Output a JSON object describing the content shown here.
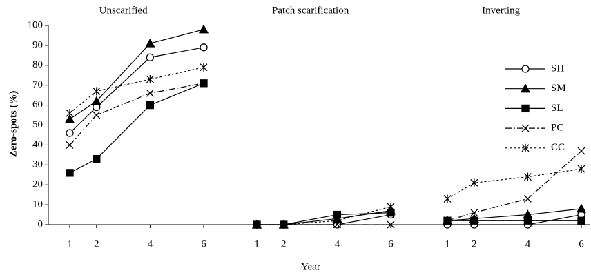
{
  "chart_data": {
    "type": "line",
    "y_label": "Zero-spots (%)",
    "x_label": "Year",
    "panels": [
      "Unscarified",
      "Patch scarification",
      "Inverting"
    ],
    "x": [
      1,
      2,
      4,
      6
    ],
    "ylim": [
      0,
      100
    ],
    "yticks": [
      0,
      10,
      20,
      30,
      40,
      50,
      60,
      70,
      80,
      90,
      100
    ],
    "legend": "upper right",
    "series": [
      {
        "name": "SH",
        "color": "#000000",
        "marker": "circle",
        "dash": "solid",
        "values": [
          [
            46,
            59,
            84,
            89
          ],
          [
            0,
            0,
            0,
            5
          ],
          [
            0,
            0,
            0,
            5
          ]
        ]
      },
      {
        "name": "SM",
        "color": "#000000",
        "marker": "triangle",
        "dash": "solid",
        "values": [
          [
            53,
            62,
            91,
            98
          ],
          [
            0,
            0,
            3,
            7
          ],
          [
            2,
            3,
            5,
            8
          ]
        ]
      },
      {
        "name": "SL",
        "color": "#000000",
        "marker": "square",
        "dash": "solid",
        "values": [
          [
            26,
            33,
            60,
            71
          ],
          [
            0,
            0,
            5,
            6
          ],
          [
            2,
            2,
            2,
            2
          ]
        ]
      },
      {
        "name": "PC",
        "color": "#000000",
        "marker": "x",
        "dash": "dashdot",
        "values": [
          [
            40,
            55,
            66,
            71
          ],
          [
            0,
            0,
            0,
            0
          ],
          [
            2,
            6,
            13,
            37
          ]
        ]
      },
      {
        "name": "CC",
        "color": "#000000",
        "marker": "asterisk",
        "dash": "dotted",
        "values": [
          [
            56,
            67,
            73,
            79
          ],
          [
            0,
            0,
            2,
            9
          ],
          [
            13,
            21,
            24,
            28
          ]
        ]
      }
    ]
  }
}
